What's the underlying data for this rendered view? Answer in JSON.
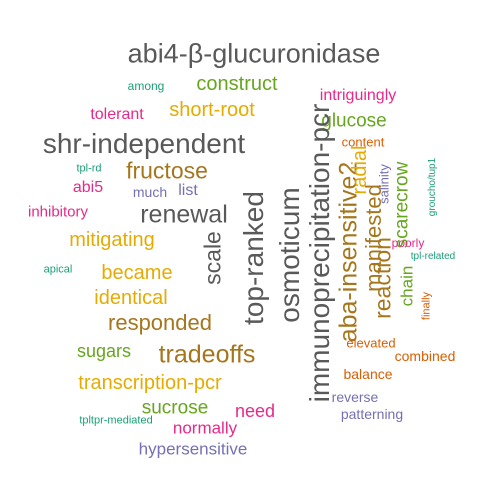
{
  "palette": {
    "gray": "#595959",
    "green": "#66a61e",
    "orange": "#d95f02",
    "gold": "#e6ab02",
    "magenta": "#e7298a",
    "brown": "#a6761d",
    "purple": "#7570b3",
    "teal": "#1b9e77"
  },
  "words": [
    {
      "text": "abi4-β-glucuronidase",
      "color": "#595959"
    },
    {
      "text": "among",
      "color": "#1b9e77"
    },
    {
      "text": "construct",
      "color": "#66a61e"
    },
    {
      "text": "tolerant",
      "color": "#e7298a"
    },
    {
      "text": "short-root",
      "color": "#e6ab02"
    },
    {
      "text": "intriguingly",
      "color": "#e7298a"
    },
    {
      "text": "glucose",
      "color": "#66a61e"
    },
    {
      "text": "shr-independent",
      "color": "#595959"
    },
    {
      "text": "content",
      "color": "#d95f02"
    },
    {
      "text": "tpl-rd",
      "color": "#1b9e77"
    },
    {
      "text": "fructose",
      "color": "#a6761d"
    },
    {
      "text": "abi5",
      "color": "#e7298a"
    },
    {
      "text": "much",
      "color": "#7570b3"
    },
    {
      "text": "list",
      "color": "#7570b3"
    },
    {
      "text": "inhibitory",
      "color": "#e7298a"
    },
    {
      "text": "renewal",
      "color": "#595959"
    },
    {
      "text": "mitigating",
      "color": "#e6ab02"
    },
    {
      "text": "apical",
      "color": "#1b9e77"
    },
    {
      "text": "became",
      "color": "#e6ab02"
    },
    {
      "text": "identical",
      "color": "#e6ab02"
    },
    {
      "text": "responded",
      "color": "#a6761d"
    },
    {
      "text": "sugars",
      "color": "#66a61e"
    },
    {
      "text": "tradeoffs",
      "color": "#a6761d"
    },
    {
      "text": "transcription-pcr",
      "color": "#e6ab02"
    },
    {
      "text": "sucrose",
      "color": "#66a61e"
    },
    {
      "text": "need",
      "color": "#e7298a"
    },
    {
      "text": "normally",
      "color": "#e7298a"
    },
    {
      "text": "tpltpr-mediated",
      "color": "#1b9e77"
    },
    {
      "text": "hypersensitive",
      "color": "#7570b3"
    },
    {
      "text": "scale",
      "color": "#595959"
    },
    {
      "text": "top-ranked",
      "color": "#595959"
    },
    {
      "text": "osmoticum",
      "color": "#595959"
    },
    {
      "text": "immunoprecipitation-pcr",
      "color": "#595959"
    },
    {
      "text": "aba-insensitive2",
      "color": "#a6761d"
    },
    {
      "text": "manifested",
      "color": "#a6761d"
    },
    {
      "text": "radial",
      "color": "#e6ab02"
    },
    {
      "text": "reaction",
      "color": "#a6761d"
    },
    {
      "text": "salinity",
      "color": "#7570b3"
    },
    {
      "text": "scarecrow",
      "color": "#66a61e"
    },
    {
      "text": "chain",
      "color": "#66a61e"
    },
    {
      "text": "groucho/tup1",
      "color": "#1b9e77"
    },
    {
      "text": "poorly",
      "color": "#e7298a"
    },
    {
      "text": "tpl-related",
      "color": "#1b9e77"
    },
    {
      "text": "finally",
      "color": "#d95f02"
    },
    {
      "text": "elevated",
      "color": "#d95f02"
    },
    {
      "text": "combined",
      "color": "#d95f02"
    },
    {
      "text": "balance",
      "color": "#d95f02"
    },
    {
      "text": "reverse",
      "color": "#7570b3"
    },
    {
      "text": "patterning",
      "color": "#7570b3"
    }
  ]
}
